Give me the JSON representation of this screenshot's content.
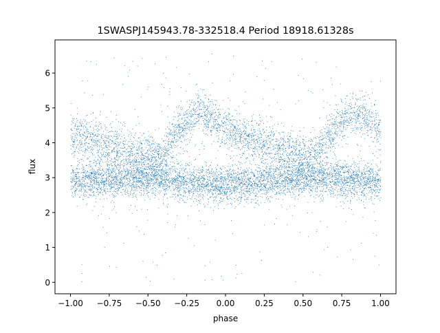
{
  "chart_data": {
    "type": "scatter",
    "title": "1SWASPJ145943.78-332518.4 Period 18918.61328s",
    "xlabel": "phase",
    "ylabel": "flux",
    "xlim": [
      -1.1,
      1.1
    ],
    "ylim": [
      -0.33,
      6.95
    ],
    "x_ticks": [
      -1.0,
      -0.75,
      -0.5,
      -0.25,
      0.0,
      0.25,
      0.5,
      0.75,
      1.0
    ],
    "x_tick_labels": [
      "−1.00",
      "−0.75",
      "−0.50",
      "−0.25",
      "0.00",
      "0.25",
      "0.50",
      "0.75",
      "1.00"
    ],
    "y_ticks": [
      0,
      1,
      2,
      3,
      4,
      5,
      6
    ],
    "y_tick_labels": [
      "0",
      "1",
      "2",
      "3",
      "4",
      "5",
      "6"
    ],
    "point_color": "#1f77b4",
    "grid": false,
    "legend": "none",
    "x_range": [
      -1.0,
      1.0
    ],
    "series": [
      {
        "description_of_structure": "dense band of points",
        "trend": [
          {
            "phase": -1.0,
            "flux": 2.9
          },
          {
            "phase": -0.5,
            "flux": 3.0
          },
          {
            "phase": 0.0,
            "flux": 2.8
          },
          {
            "phase": 0.5,
            "flux": 3.0
          },
          {
            "phase": 1.0,
            "flux": 2.9
          }
        ]
      },
      {
        "trend": [
          {
            "phase": -1.0,
            "flux": 4.3
          },
          {
            "phase": -0.8,
            "flux": 4.0
          },
          {
            "phase": -0.6,
            "flux": 3.7
          },
          {
            "phase": -0.42,
            "flux": 3.6
          },
          {
            "phase": -0.3,
            "flux": 4.4
          },
          {
            "phase": -0.18,
            "flux": 4.9
          },
          {
            "phase": -0.05,
            "flux": 4.6
          },
          {
            "phase": 0.1,
            "flux": 4.2
          },
          {
            "phase": 0.3,
            "flux": 3.9
          },
          {
            "phase": 0.5,
            "flux": 3.6
          },
          {
            "phase": 0.58,
            "flux": 3.6
          },
          {
            "phase": 0.7,
            "flux": 4.4
          },
          {
            "phase": 0.82,
            "flux": 4.9
          },
          {
            "phase": 0.95,
            "flux": 4.6
          },
          {
            "phase": 1.0,
            "flux": 4.3
          }
        ]
      }
    ]
  }
}
